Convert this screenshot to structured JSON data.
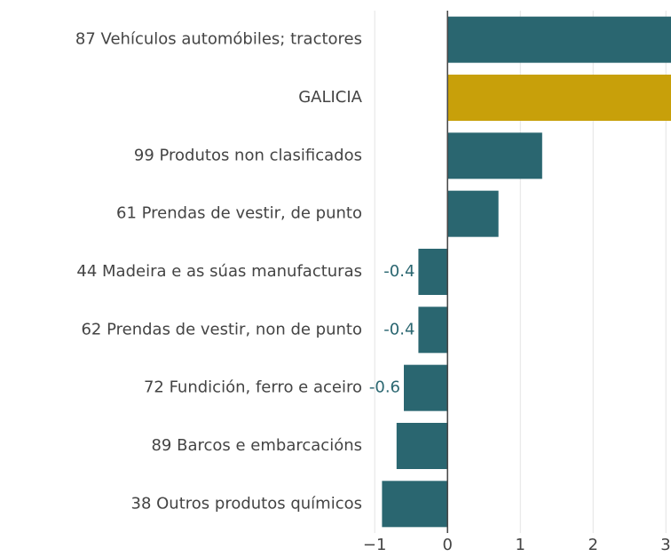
{
  "chart_data": {
    "type": "bar",
    "orientation": "horizontal",
    "categories": [
      "87 Vehículos automóbiles; tractores",
      "GALICIA",
      "99 Produtos non clasificados",
      "61 Prendas de vestir, de punto",
      "44 Madeira e as súas manufacturas",
      "62 Prendas de vestir, non de punto",
      "72 Fundición, ferro e aceiro",
      "89 Barcos e embarcacións",
      "38 Outros produtos químicos"
    ],
    "values": [
      3.07,
      3.07,
      1.3,
      0.7,
      -0.4,
      -0.4,
      -0.6,
      -0.7,
      -0.9
    ],
    "value_labels": [
      null,
      null,
      null,
      null,
      "-0.4",
      "-0.4",
      "-0.6",
      null,
      null
    ],
    "colors": [
      "#2a6670",
      "#c8a00a",
      "#2a6670",
      "#2a6670",
      "#2a6670",
      "#2a6670",
      "#2a6670",
      "#2a6670",
      "#2a6670"
    ],
    "xlim": [
      -1.1,
      3.07
    ],
    "xticks": [
      {
        "value": -1,
        "label": "−1"
      },
      0,
      1,
      2,
      3
    ],
    "grid": true
  }
}
